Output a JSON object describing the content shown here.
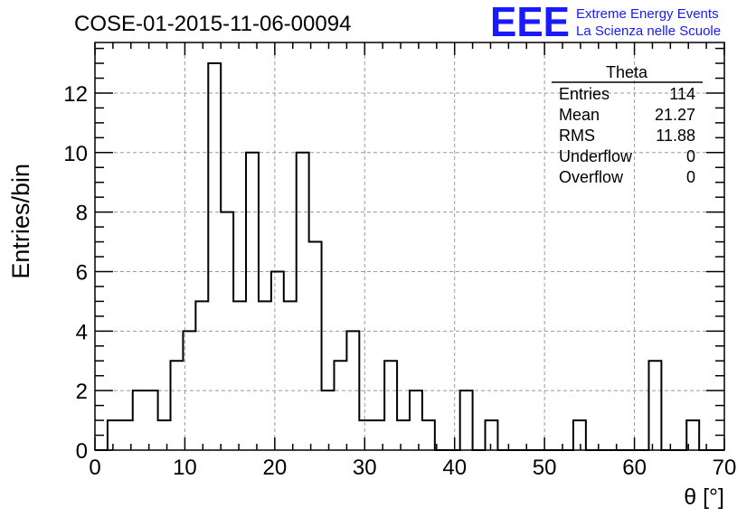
{
  "header": {
    "run_title": "COSE-01-2015-11-06-00094",
    "logo_text": "EEE",
    "logo_line1": "Extreme Energy Events",
    "logo_line2": "La Scienza nelle Scuole"
  },
  "colors": {
    "logo": "#1a1aff",
    "histogram_line": "#000000",
    "grid": "#9a9a9a"
  },
  "stats_box": {
    "title": "Theta",
    "rows": [
      {
        "label": "Entries",
        "value": "114"
      },
      {
        "label": "Mean",
        "value": "21.27"
      },
      {
        "label": "RMS",
        "value": "11.88"
      },
      {
        "label": "Underflow",
        "value": "0"
      },
      {
        "label": "Overflow",
        "value": "0"
      }
    ]
  },
  "chart_data": {
    "type": "bar",
    "histogram_style": "step",
    "xlabel": "θ [°]",
    "ylabel": "Entries/bin",
    "xlim": [
      0,
      70
    ],
    "ylim": [
      0,
      13.7
    ],
    "grid": true,
    "x_ticks": [
      0,
      10,
      20,
      30,
      40,
      50,
      60,
      70
    ],
    "y_ticks": [
      0,
      2,
      4,
      6,
      8,
      10,
      12
    ],
    "bin_edges": [
      0,
      1.4,
      2.8,
      4.2,
      5.6,
      7.0,
      8.4,
      9.8,
      11.2,
      12.6,
      14.0,
      15.4,
      16.8,
      18.2,
      19.6,
      21.0,
      22.4,
      23.8,
      25.2,
      26.6,
      28.0,
      29.4,
      30.8,
      32.2,
      33.6,
      35.0,
      36.4,
      37.8,
      39.2,
      40.6,
      42.0,
      43.4,
      44.8,
      46.2,
      47.6,
      49.0,
      50.4,
      51.8,
      53.2,
      54.6,
      56.0,
      57.4,
      58.8,
      60.2,
      61.6,
      63.0,
      64.4,
      65.8,
      67.2,
      68.6,
      70.0
    ],
    "values": [
      0,
      1,
      1,
      2,
      2,
      1,
      3,
      4,
      5,
      13,
      8,
      5,
      10,
      5,
      6,
      5,
      10,
      7,
      2,
      3,
      4,
      1,
      1,
      3,
      1,
      2,
      1,
      0,
      0,
      2,
      0,
      1,
      0,
      0,
      0,
      0,
      0,
      0,
      1,
      0,
      0,
      0,
      0,
      0,
      3,
      0,
      0,
      1,
      0,
      0
    ]
  }
}
